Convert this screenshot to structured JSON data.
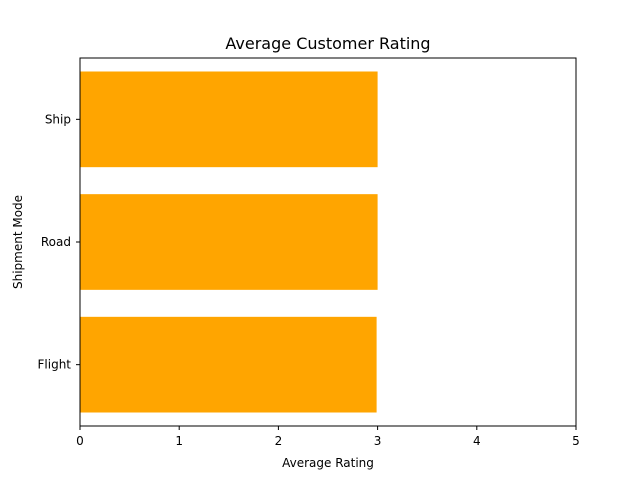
{
  "chart_data": {
    "type": "bar",
    "orientation": "horizontal",
    "title": "Average Customer Rating",
    "xlabel": "Average Rating",
    "ylabel": "Shipment Mode",
    "categories": [
      "Flight",
      "Road",
      "Ship"
    ],
    "values": [
      2.99,
      3.0,
      3.0
    ],
    "xlim": [
      0,
      5
    ],
    "xticks": [
      "0",
      "1",
      "2",
      "3",
      "4",
      "5"
    ],
    "grid": false,
    "legend": "none",
    "bar_color": "#ffa500"
  }
}
